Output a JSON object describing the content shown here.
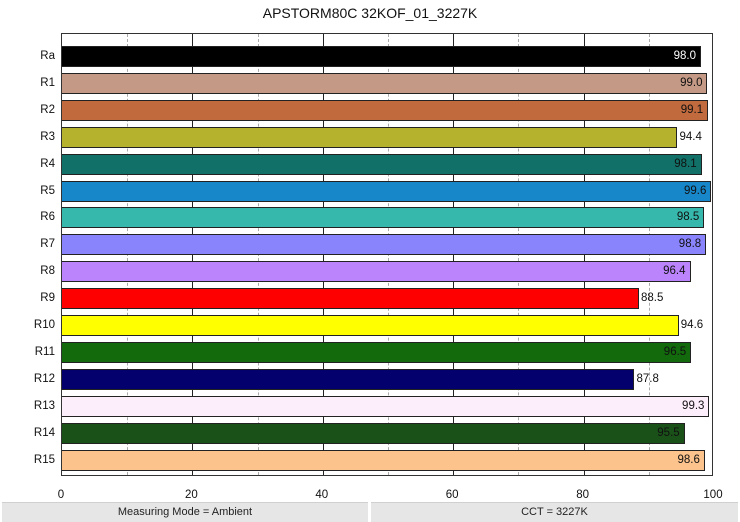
{
  "title": "APSTORM80C 32KOF_01_3227K",
  "footer": {
    "left": "Measuring Mode = Ambient",
    "right": "CCT = 3227K"
  },
  "x_ticks": [
    "0",
    "20",
    "40",
    "60",
    "80",
    "100"
  ],
  "chart_data": {
    "type": "bar",
    "orientation": "horizontal",
    "title": "APSTORM80C 32KOF_01_3227K",
    "xlabel": "",
    "ylabel": "",
    "xlim": [
      0,
      100
    ],
    "x_ticks": [
      0,
      20,
      40,
      60,
      80,
      100
    ],
    "grid": {
      "major": [
        20,
        40,
        60,
        80
      ],
      "minor_dashed": [
        10,
        30,
        50,
        70,
        90
      ]
    },
    "categories": [
      "Ra",
      "R1",
      "R2",
      "R3",
      "R4",
      "R5",
      "R6",
      "R7",
      "R8",
      "R9",
      "R10",
      "R11",
      "R12",
      "R13",
      "R14",
      "R15"
    ],
    "values": [
      98.0,
      99.0,
      99.1,
      94.4,
      98.1,
      99.6,
      98.5,
      98.8,
      96.4,
      88.5,
      94.6,
      96.5,
      87.8,
      99.3,
      95.5,
      98.6
    ],
    "labels": [
      "98.0",
      "99.0",
      "99.1",
      "94.4",
      "98.1",
      "99.6",
      "98.5",
      "98.8",
      "96.4",
      "88.5",
      "94.6",
      "96.5",
      "87.8",
      "99.3",
      "95.5",
      "98.6"
    ],
    "colors": [
      "#000000",
      "#c49a86",
      "#c06a3e",
      "#b5b22e",
      "#117068",
      "#1787c9",
      "#36b8ac",
      "#8a84fc",
      "#bb84fc",
      "#fe0000",
      "#ffff00",
      "#126a0c",
      "#03006e",
      "#fdeefc",
      "#1a5119",
      "#fcc38c"
    ],
    "label_colors": [
      "#ffffff",
      "#111111",
      "#111111",
      "#111111",
      "#111111",
      "#111111",
      "#111111",
      "#111111",
      "#111111",
      "#111111",
      "#111111",
      "#111111",
      "#111111",
      "#111111",
      "#111111",
      "#111111"
    ]
  }
}
